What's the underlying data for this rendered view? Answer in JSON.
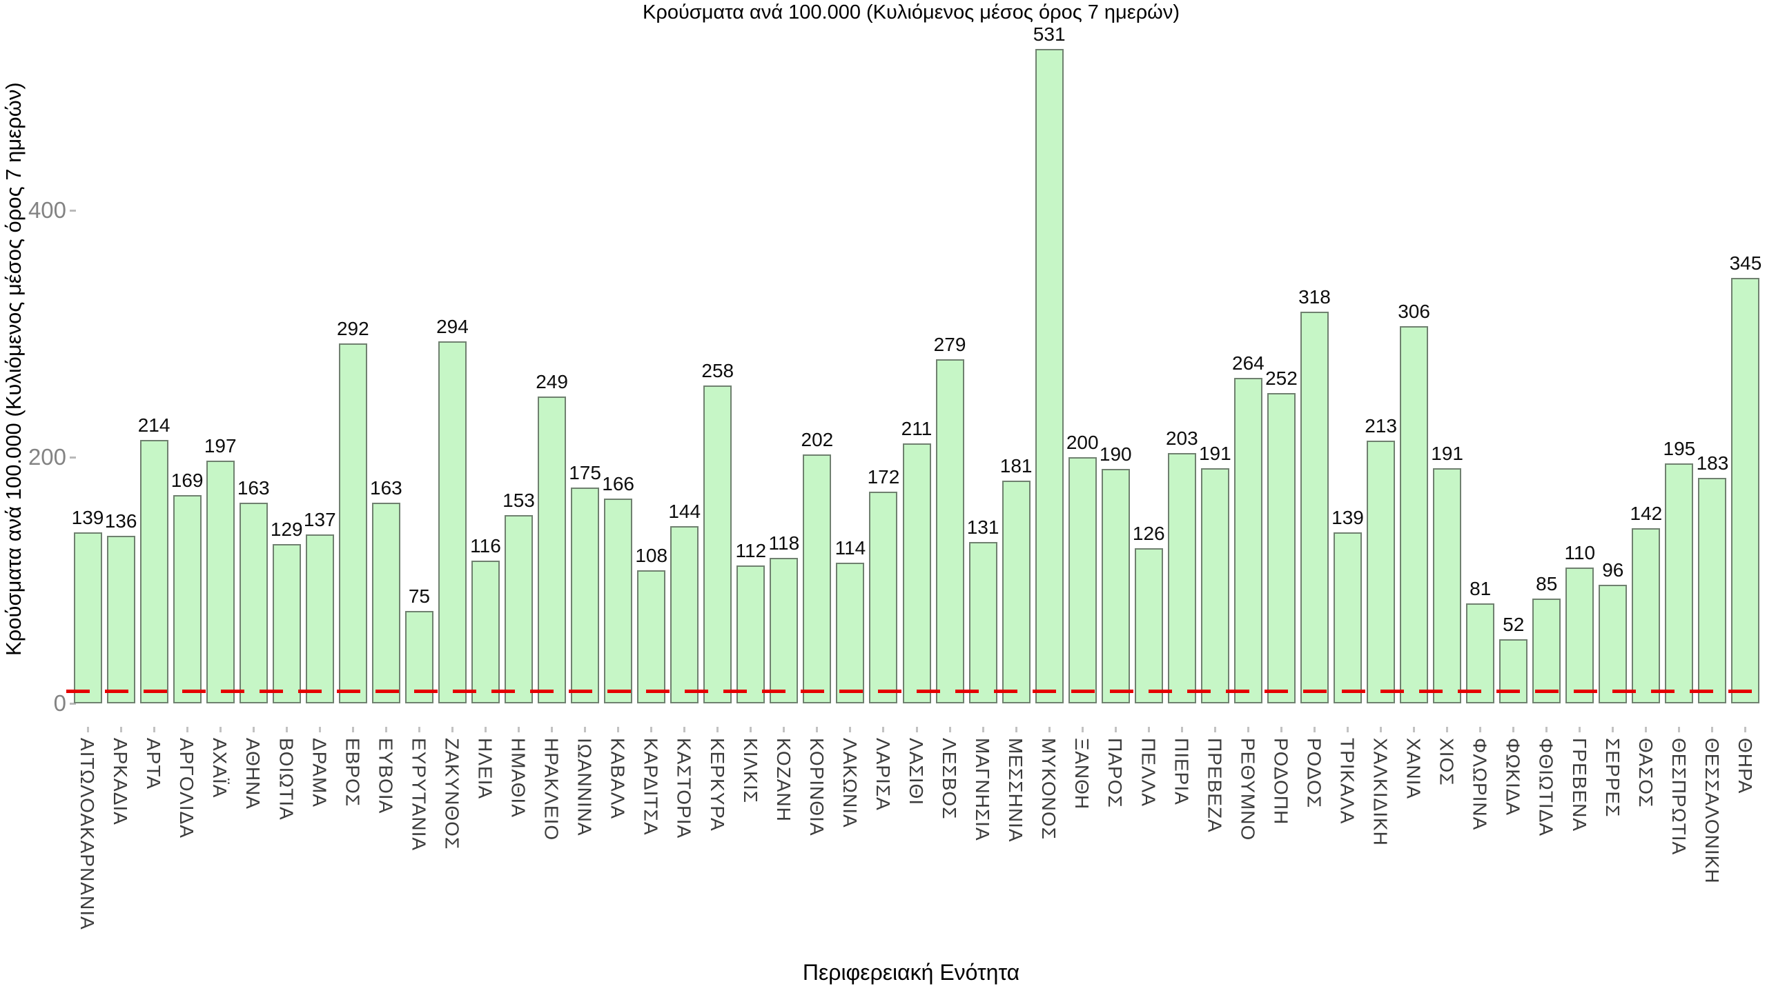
{
  "chart_data": {
    "type": "bar",
    "title": "Κρούσματα ανά 100.000 (Κυλιόμενος μέσος όρος 7 ημερών)",
    "xlabel": "Περιφερειακή Ενότητα",
    "ylabel": "Κρούσματα ανά 100.000 (Κυλιόμενος μέσος όρος 7 ημερών)",
    "yticks": [
      0,
      200,
      400
    ],
    "ylim": [
      0,
      560
    ],
    "grid": false,
    "legend": "none",
    "bar_fill_color": "#c6f6c6",
    "bar_border_color": "#6f806f",
    "value_label_color": "#0d0d0d",
    "tick_label_color": "#838383",
    "category_label_color": "#3c3c3c",
    "threshold_line": {
      "value": 10,
      "color": "#e50000",
      "style": "dashed"
    },
    "categories": [
      "ΑΙΤΩΛΟΑΚΑΡΝΑΝΙΑ",
      "ΑΡΚΑΔΙΑ",
      "ΑΡΤΑ",
      "ΑΡΓΟΛΙΔΑ",
      "ΑΧΑΪΑ",
      "ΑΘΗΝΑ",
      "ΒΟΙΩΤΙΑ",
      "ΔΡΑΜΑ",
      "ΕΒΡΟΣ",
      "ΕΥΒΟΙΑ",
      "ΕΥΡΥΤΑΝΙΑ",
      "ΖΑΚΥΝΘΟΣ",
      "ΗΛΕΙΑ",
      "ΗΜΑΘΙΑ",
      "ΗΡΑΚΛΕΙΟ",
      "ΙΩΑΝΝΙΝΑ",
      "ΚΑΒΑΛΑ",
      "ΚΑΡΔΙΤΣΑ",
      "ΚΑΣΤΟΡΙΑ",
      "ΚΕΡΚΥΡΑ",
      "ΚΙΛΚΙΣ",
      "ΚΟΖΑΝΗ",
      "ΚΟΡΙΝΘΙΑ",
      "ΛΑΚΩΝΙΑ",
      "ΛΑΡΙΣΑ",
      "ΛΑΣΙΘΙ",
      "ΛΕΣΒΟΣ",
      "ΜΑΓΝΗΣΙΑ",
      "ΜΕΣΣΗΝΙΑ",
      "ΜΥΚΟΝΟΣ",
      "ΞΑΝΘΗ",
      "ΠΑΡΟΣ",
      "ΠΕΛΛΑ",
      "ΠΙΕΡΙΑ",
      "ΠΡΕΒΕΖΑ",
      "ΡΕΘΥΜΝΟ",
      "ΡΟΔΟΠΗ",
      "ΡΟΔΟΣ",
      "ΤΡΙΚΑΛΑ",
      "ΧΑΛΚΙΔΙΚΗ",
      "ΧΑΝΙΑ",
      "ΧΙΟΣ",
      "ΦΛΩΡΙΝΑ",
      "ΦΩΚΙΔΑ",
      "ΦΘΙΩΤΙΔΑ",
      "ΓΡΕΒΕΝΑ",
      "ΣΕΡΡΕΣ",
      "ΘΑΣΟΣ",
      "ΘΕΣΠΡΩΤΙΑ",
      "ΘΕΣΣΑΛΟΝΙΚΗ",
      "ΘΗΡΑ"
    ],
    "values": [
      139,
      136,
      214,
      169,
      197,
      163,
      129,
      137,
      292,
      163,
      75,
      294,
      116,
      153,
      249,
      175,
      166,
      108,
      144,
      258,
      112,
      118,
      202,
      114,
      172,
      211,
      279,
      131,
      181,
      531,
      200,
      190,
      126,
      203,
      191,
      264,
      252,
      318,
      139,
      213,
      306,
      191,
      81,
      52,
      85,
      110,
      96,
      142,
      195,
      183,
      345
    ]
  }
}
